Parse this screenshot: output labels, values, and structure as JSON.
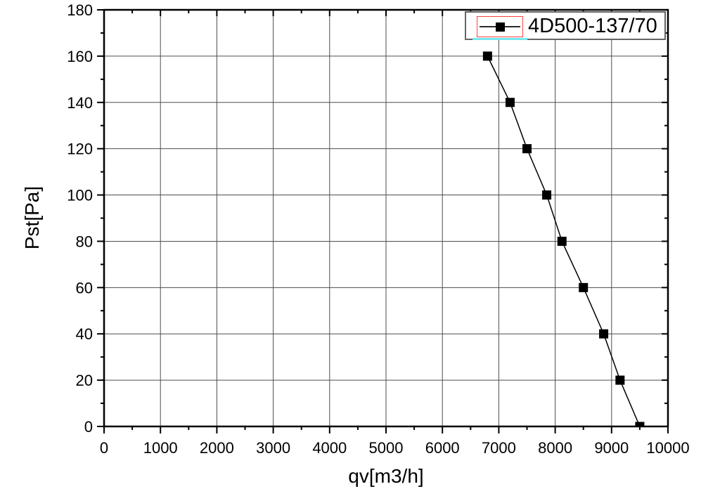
{
  "chart_data": {
    "type": "line",
    "title": "",
    "xlabel": "qv[m3/h]",
    "ylabel": "Pst[Pa]",
    "xlim": [
      0,
      10000
    ],
    "ylim": [
      0,
      180
    ],
    "x_major_step": 1000,
    "x_minor_step": 500,
    "y_major_step": 20,
    "y_minor_step": 10,
    "grid": true,
    "legend_position": "top-right",
    "x_tick_labels": [
      "0",
      "1000",
      "2000",
      "3000",
      "4000",
      "5000",
      "6000",
      "7000",
      "8000",
      "9000",
      "10000"
    ],
    "y_tick_labels": [
      "0",
      "20",
      "40",
      "60",
      "80",
      "100",
      "120",
      "140",
      "160",
      "180"
    ],
    "series": [
      {
        "name": "4D500-137/70",
        "marker": "filled-square",
        "marker_size": 13,
        "line_width": 1.5,
        "color": "#000000",
        "points": [
          [
            6800,
            160
          ],
          [
            7200,
            140
          ],
          [
            7500,
            120
          ],
          [
            7850,
            100
          ],
          [
            8120,
            80
          ],
          [
            8500,
            60
          ],
          [
            8860,
            40
          ],
          [
            9150,
            20
          ],
          [
            9500,
            0
          ]
        ]
      }
    ]
  },
  "legend": {
    "selected": true,
    "selection_color": "#ff4040",
    "selection_underline_color": "#76e8ef"
  },
  "colors": {
    "background": "#ffffff",
    "axis": "#000000",
    "grid": "#4d4d4d",
    "tick": "#000000",
    "text": "#000000",
    "series": "#000000"
  }
}
